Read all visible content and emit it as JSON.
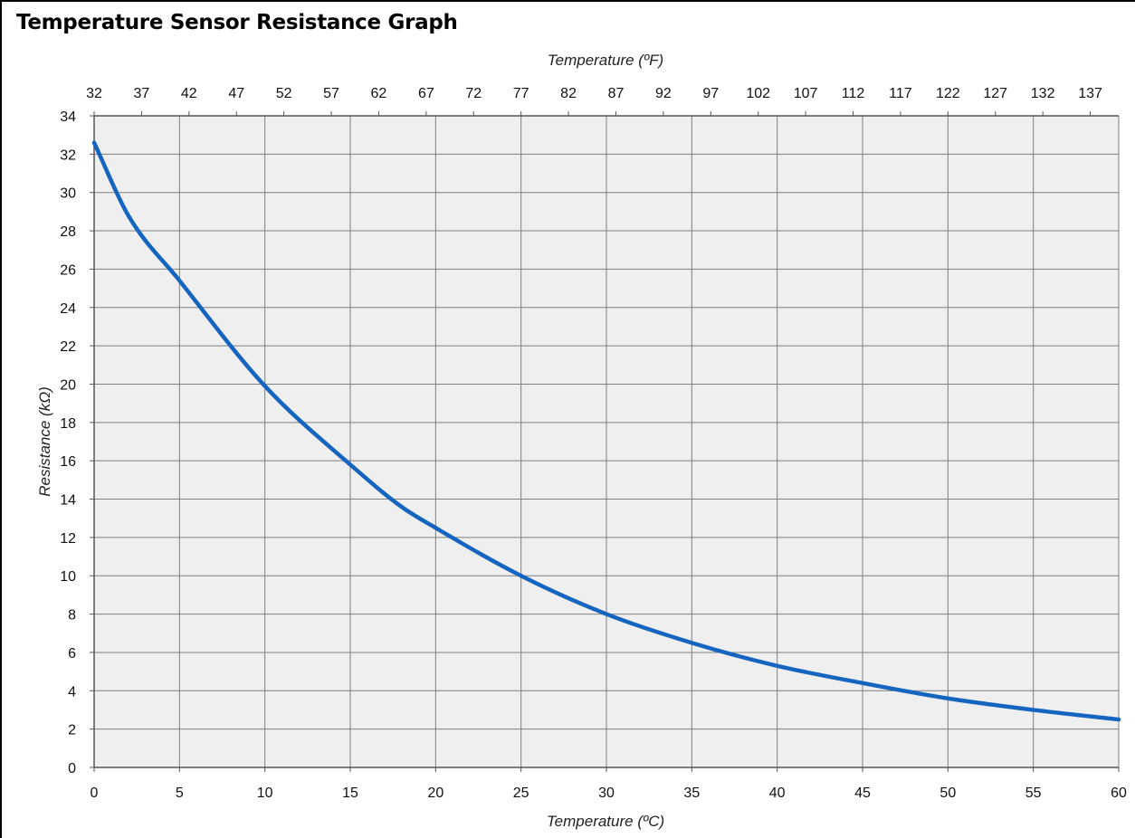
{
  "title": "Temperature Sensor Resistance Graph",
  "chart_data": {
    "type": "line",
    "title": "Temperature Sensor Resistance Graph",
    "xlabel": "Temperature (ºC)",
    "x2label": "Temperature (ºF)",
    "ylabel": "Resistance (kΩ)",
    "xlim": [
      0,
      60
    ],
    "ylim": [
      0,
      34
    ],
    "x_ticks": [
      0,
      5,
      10,
      15,
      20,
      25,
      30,
      35,
      40,
      45,
      50,
      55,
      60
    ],
    "y_ticks": [
      0,
      2,
      4,
      6,
      8,
      10,
      12,
      14,
      16,
      18,
      20,
      22,
      24,
      26,
      28,
      30,
      32,
      34
    ],
    "x2_ticks": [
      32,
      37,
      42,
      47,
      52,
      57,
      62,
      67,
      72,
      77,
      82,
      87,
      92,
      97,
      102,
      107,
      112,
      117,
      122,
      127,
      132,
      137
    ],
    "grid": true,
    "line_color": "#1565c0",
    "plot_background": "#efefef",
    "grid_color": "#7f7f7f",
    "series": [
      {
        "x": [
          0,
          2,
          5,
          10,
          15,
          18,
          20,
          25,
          30,
          35,
          40,
          45,
          50,
          55,
          60
        ],
        "values": [
          32.6,
          28.8,
          25.4,
          19.9,
          15.8,
          13.6,
          12.5,
          10.0,
          8.0,
          6.5,
          5.3,
          4.4,
          3.6,
          3.0,
          2.5
        ]
      }
    ]
  }
}
